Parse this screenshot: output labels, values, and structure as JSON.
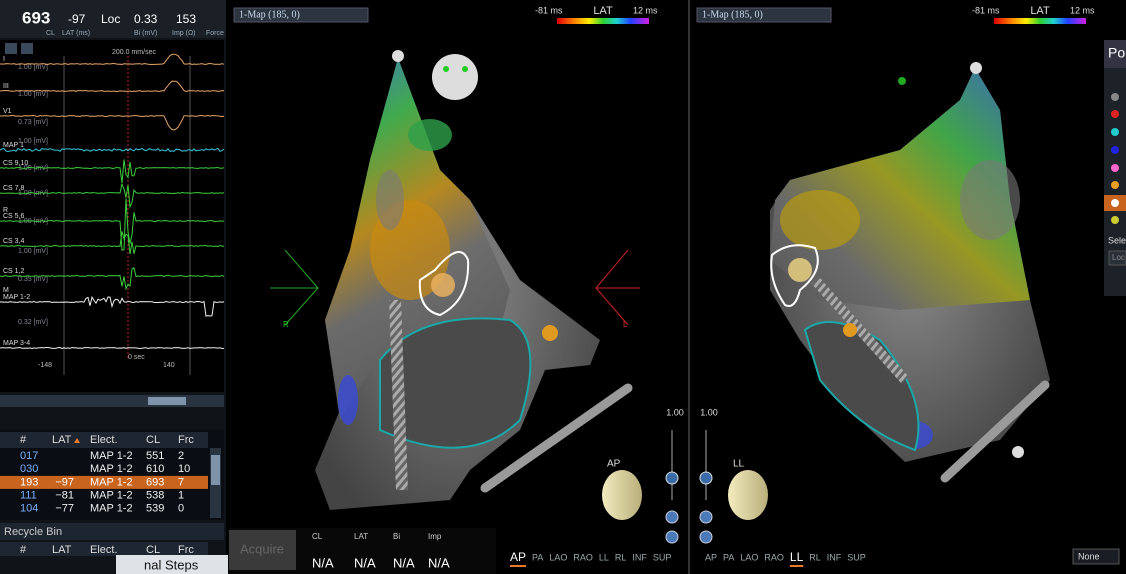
{
  "header": {
    "cl": "693",
    "cl_label": "CL",
    "lat": "-97",
    "lat_label": "LAT (ms)",
    "loc": "Loc",
    "bi": "0.33",
    "bi_label": "Bi (mV)",
    "imp": "153",
    "imp_label": "Imp (Ω)",
    "force_label": "Force"
  },
  "ecg": {
    "speed": "200.0 mm/sec",
    "channels": [
      {
        "name": "I",
        "scale": "1.00 [mV]",
        "color": "#e8a56a"
      },
      {
        "name": "III",
        "scale": "1.00 [mV]",
        "color": "#e8a56a"
      },
      {
        "name": "V1",
        "scale": "0.73 [mV]",
        "color": "#e8a56a"
      },
      {
        "name": "MAP 1",
        "scale": "1.00 [mV]",
        "color": "#3cc8e0"
      },
      {
        "name": "CS 9,10",
        "scale": "1.00 [mV]",
        "color": "#3ccf3c"
      },
      {
        "name": "CS 7,8",
        "scale": "1.00 [mV]",
        "color": "#3ccf3c"
      },
      {
        "name": "CS 5,6",
        "scale": "1.00 [mV]",
        "color": "#3ccf3c"
      },
      {
        "name": "CS 3,4",
        "scale": "1.00 [mV]",
        "color": "#3ccf3c"
      },
      {
        "name": "CS 1,2",
        "scale": "0.35 [mV]",
        "color": "#3ccf3c"
      },
      {
        "name": "MAP 1-2",
        "scale": "0.32 [mV]",
        "color": "#f0f0f0"
      },
      {
        "name": "MAP 3-4",
        "color": "#f0f0f0"
      }
    ],
    "side_labels": [
      "R",
      "M"
    ],
    "time_start": "-148",
    "time_zero": "0 sec",
    "time_end": "140"
  },
  "table": {
    "headers": [
      "#",
      "LAT",
      "Elect.",
      "CL",
      "Frc"
    ],
    "rows": [
      {
        "id": "017",
        "elect": "MAP 1-2",
        "cl": "551",
        "frc": "2"
      },
      {
        "id": "030",
        "elect": "MAP 1-2",
        "cl": "610",
        "frc": "10"
      },
      {
        "id": "193",
        "lat": "−97",
        "elect": "MAP 1-2",
        "cl": "693",
        "frc": "7",
        "selected": true
      },
      {
        "id": "111",
        "lat": "−81",
        "elect": "MAP 1-2",
        "cl": "538",
        "frc": "1"
      },
      {
        "id": "104",
        "lat": "−77",
        "elect": "MAP 1-2",
        "cl": "539",
        "frc": "0"
      }
    ],
    "recycle_bin": "Recycle Bin",
    "steps": "nal Steps"
  },
  "acquire": {
    "button": "Acquire",
    "labels": [
      "CL",
      "LAT",
      "Bi",
      "Imp"
    ],
    "values": [
      "N/A",
      "N/A",
      "N/A",
      "N/A"
    ]
  },
  "views": [
    "AP",
    "PA",
    "LAO",
    "RAO",
    "LL",
    "RL",
    "INF",
    "SUP"
  ],
  "maps": [
    {
      "label": "1-Map (185, 0)",
      "lat_min": "-81 ms",
      "lat_title": "LAT",
      "lat_max": "12 ms",
      "selected_view": "AP",
      "zoom": "1.00",
      "markers": [
        "R",
        "L"
      ]
    },
    {
      "label": "1-Map (185, 0)",
      "lat_min": "-81 ms",
      "lat_title": "LAT",
      "lat_max": "12 ms",
      "selected_view": "LL",
      "zoom": "1.00"
    }
  ],
  "side_panel": {
    "title": "Po",
    "select": "Sele",
    "loc": "Loc",
    "dropdown": "None"
  }
}
